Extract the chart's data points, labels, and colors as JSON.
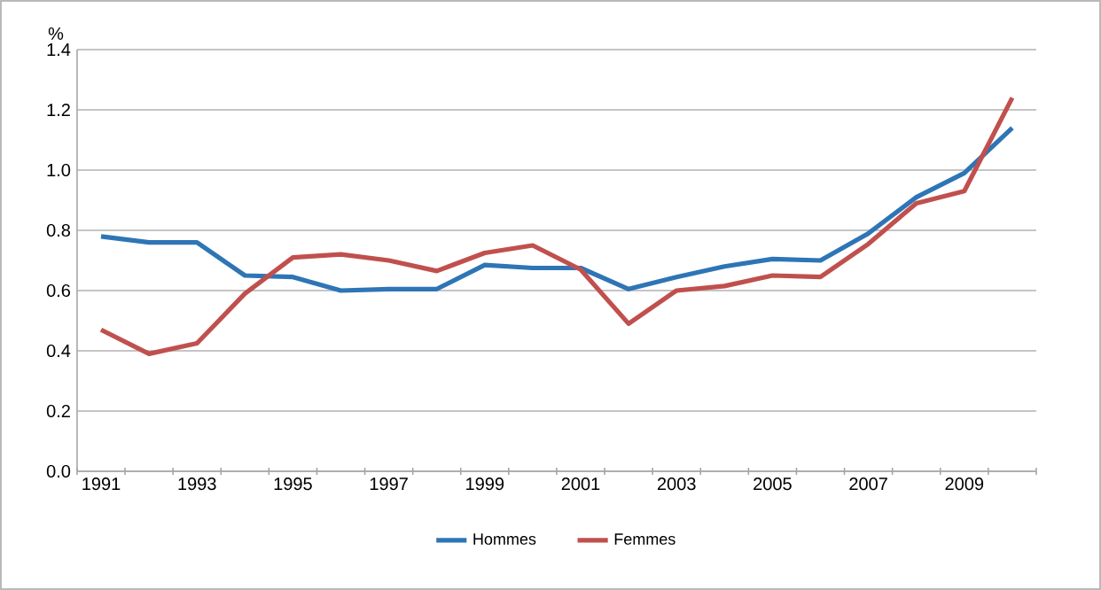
{
  "chart_data": {
    "type": "line",
    "ylabel": "%",
    "categories": [
      "1991",
      null,
      "1993",
      null,
      "1995",
      null,
      "1997",
      null,
      "1999",
      null,
      "2001",
      null,
      "2003",
      null,
      "2005",
      null,
      "2007",
      null,
      "2009",
      null
    ],
    "series": [
      {
        "name": "Hommes",
        "color": "#2e75b6",
        "values": [
          0.78,
          0.76,
          0.76,
          0.65,
          0.645,
          0.6,
          0.605,
          0.605,
          0.685,
          0.675,
          0.675,
          0.605,
          0.645,
          0.68,
          0.705,
          0.7,
          0.79,
          0.91,
          0.99,
          1.14
        ]
      },
      {
        "name": "Femmes",
        "color": "#c0504d",
        "values": [
          0.47,
          0.39,
          0.425,
          0.59,
          0.71,
          0.72,
          0.7,
          0.665,
          0.725,
          0.75,
          0.67,
          0.49,
          0.6,
          0.615,
          0.65,
          0.645,
          0.755,
          0.89,
          0.93,
          1.24
        ]
      }
    ],
    "ylim": [
      0,
      1.4
    ],
    "yticks": [
      {
        "value": 0,
        "label": "0.0"
      },
      {
        "value": 0.2,
        "label": "0.2"
      },
      {
        "value": 0.4,
        "label": "0.4"
      },
      {
        "value": 0.6,
        "label": "0.6"
      },
      {
        "value": 0.8,
        "label": "0.8"
      },
      {
        "value": 1.0,
        "label": "1.0"
      },
      {
        "value": 1.2,
        "label": "1.2"
      },
      {
        "value": 1.4,
        "label": "1.4"
      }
    ],
    "grid": "y",
    "legend": "bottom",
    "marker": "none",
    "line_style": "solid"
  }
}
